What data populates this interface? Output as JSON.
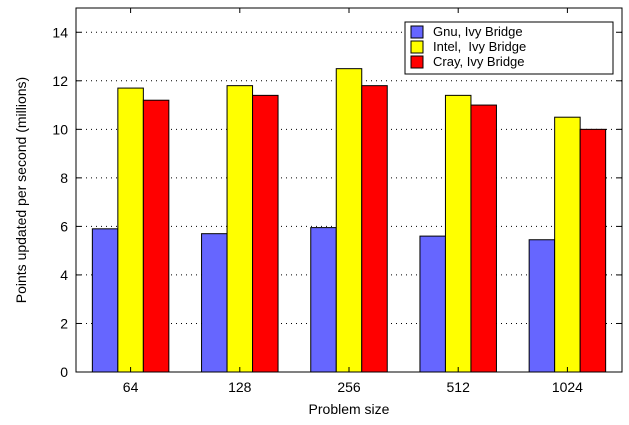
{
  "chart_data": {
    "type": "bar",
    "title": "",
    "xlabel": "Problem size",
    "ylabel": "Points updated per second (millions)",
    "categories": [
      "64",
      "128",
      "256",
      "512",
      "1024"
    ],
    "ylim": [
      0,
      15
    ],
    "yticks": [
      0,
      2,
      4,
      6,
      8,
      10,
      12,
      14
    ],
    "grid": "horizontal dotted",
    "legend_position": "top-right",
    "series": [
      {
        "name": "Gnu, Ivy Bridge",
        "color": "#6666ff",
        "values": [
          5.9,
          5.7,
          5.95,
          5.6,
          5.45
        ]
      },
      {
        "name": "Intel,  Ivy Bridge",
        "color": "#ffff00",
        "values": [
          11.7,
          11.8,
          12.5,
          11.4,
          10.5
        ]
      },
      {
        "name": "Cray, Ivy Bridge",
        "color": "#ff0000",
        "values": [
          11.2,
          11.4,
          11.8,
          11.0,
          10.0
        ]
      }
    ]
  }
}
